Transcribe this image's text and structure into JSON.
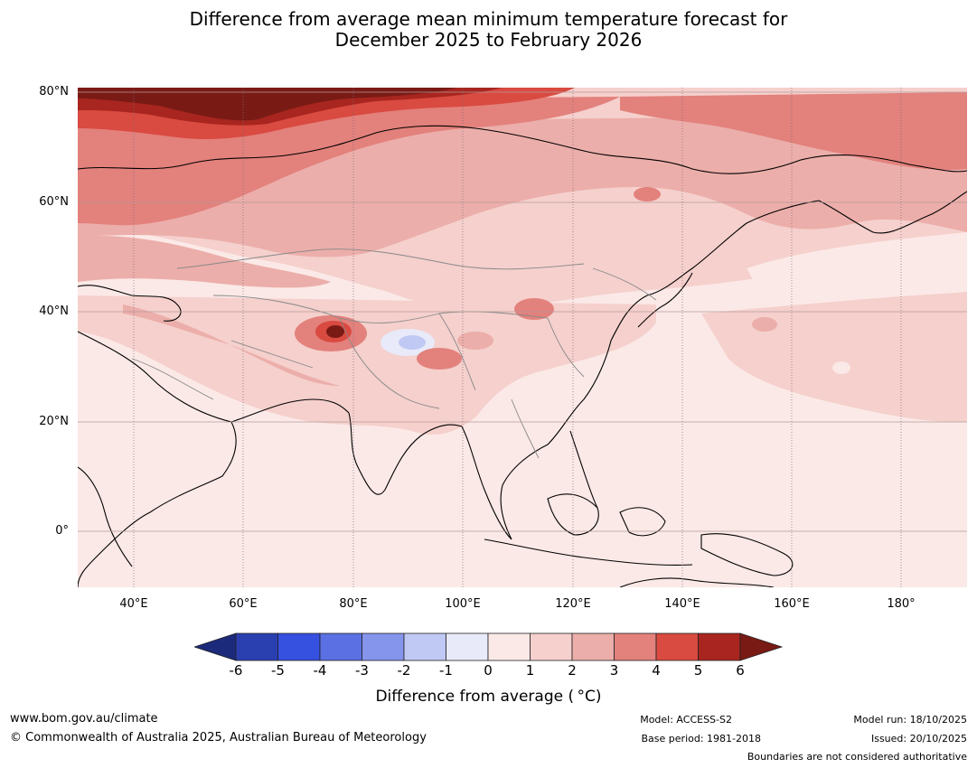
{
  "title": {
    "line1": "Difference from average mean minimum temperature forecast for",
    "line2": "December 2025 to February 2026"
  },
  "map": {
    "lat_labels": [
      "80°N",
      "60°N",
      "40°N",
      "20°N",
      "0°"
    ],
    "lon_labels": [
      "40°E",
      "60°E",
      "80°E",
      "100°E",
      "120°E",
      "140°E",
      "160°E",
      "180°"
    ]
  },
  "colorbar": {
    "ticks": [
      "-6",
      "-5",
      "-4",
      "-3",
      "-2",
      "-1",
      "0",
      "1",
      "2",
      "3",
      "4",
      "5",
      "6"
    ],
    "colors": [
      "#1b2a7a",
      "#2a3fb0",
      "#3650e0",
      "#5b70e2",
      "#8595ec",
      "#c0c8f4",
      "#e8eaf9",
      "#fbe9e7",
      "#f5d0cc",
      "#ecaeaa",
      "#e3817c",
      "#d94a40",
      "#a8261f",
      "#7a1a15"
    ],
    "label": "Difference from average ( °C)"
  },
  "footer": {
    "website": "www.bom.gov.au/climate",
    "copyright": "© Commonwealth of Australia 2025, Australian Bureau of Meteorology",
    "model": "Model: ACCESS-S2",
    "base_period": "Base period: 1981-2018",
    "model_run": "Model run: 18/10/2025",
    "issued": "Issued: 20/10/2025",
    "disclaimer": "Boundaries are not considered authoritative"
  }
}
